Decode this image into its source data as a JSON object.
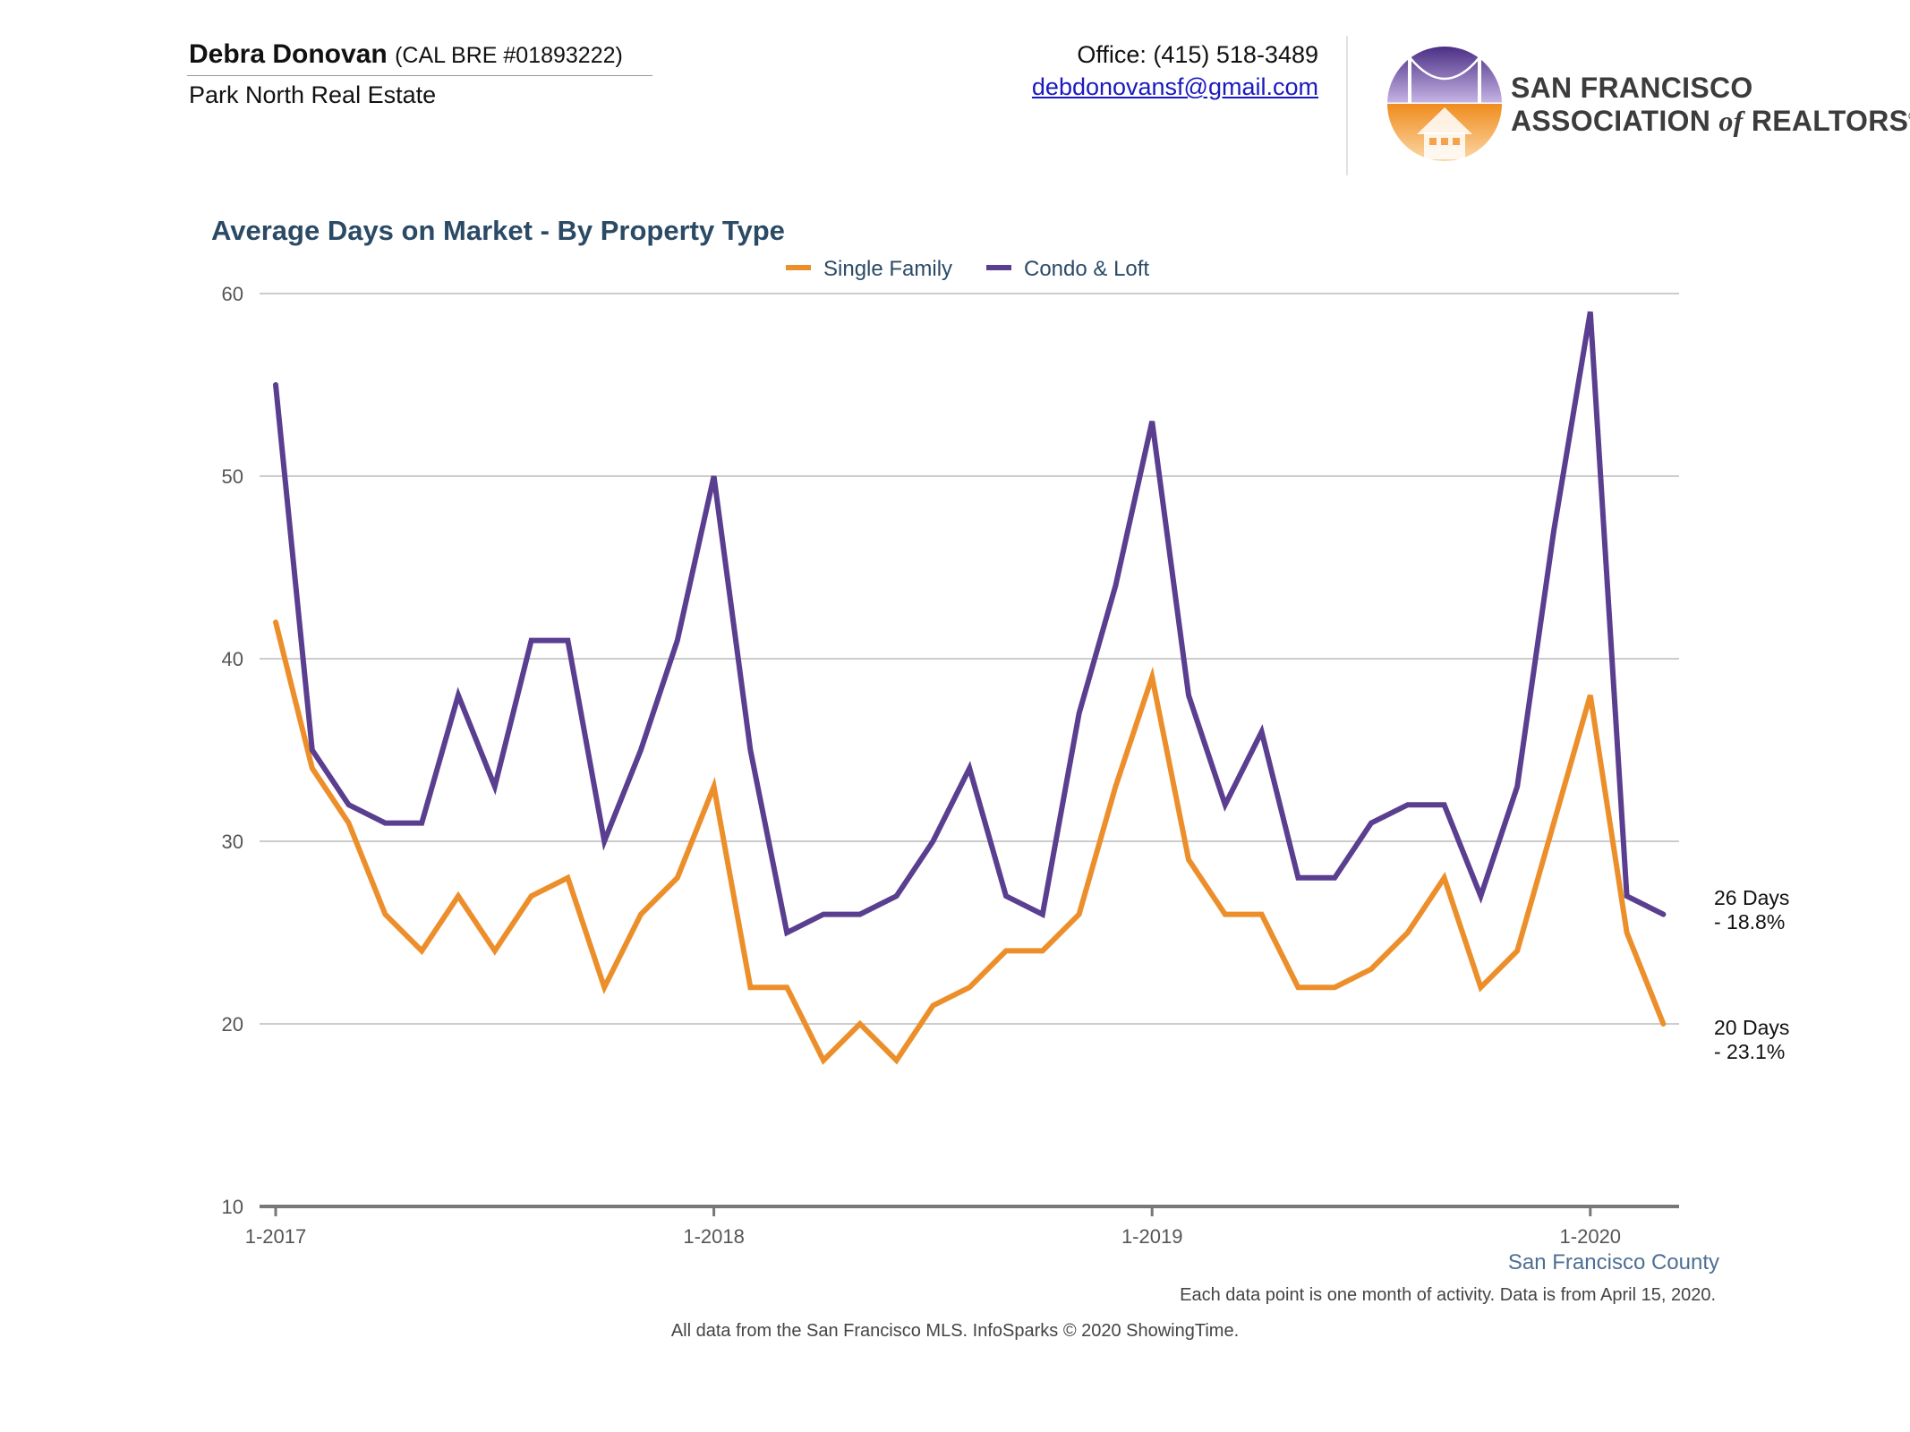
{
  "header": {
    "agent_name": "Debra Donovan",
    "agent_license": "(CAL BRE #01893222)",
    "brokerage": "Park North Real Estate",
    "office_phone": "Office: (415) 518-3489",
    "email": "debdonovansf@gmail.com",
    "association_line1": "SAN FRANCISCO",
    "association_line2_a": "ASSOCIATION",
    "association_line2_of": "of",
    "association_line2_b": "REALTORS",
    "association_mark": "®",
    "logo_icon": "golden-gate-bridge-house-logo-icon"
  },
  "chart_data": {
    "type": "line",
    "title": "Average Days on Market - By Property Type",
    "x": [
      "1-2017",
      "2-2017",
      "3-2017",
      "4-2017",
      "5-2017",
      "6-2017",
      "7-2017",
      "8-2017",
      "9-2017",
      "10-2017",
      "11-2017",
      "12-2017",
      "1-2018",
      "2-2018",
      "3-2018",
      "4-2018",
      "5-2018",
      "6-2018",
      "7-2018",
      "8-2018",
      "9-2018",
      "10-2018",
      "11-2018",
      "12-2018",
      "1-2019",
      "2-2019",
      "3-2019",
      "4-2019",
      "5-2019",
      "6-2019",
      "7-2019",
      "8-2019",
      "9-2019",
      "10-2019",
      "11-2019",
      "12-2019",
      "1-2020",
      "2-2020",
      "3-2020"
    ],
    "x_tick_labels": [
      "1-2017",
      "1-2018",
      "1-2019",
      "1-2020"
    ],
    "ylim": [
      10,
      60
    ],
    "y_ticks": [
      10,
      20,
      30,
      40,
      50,
      60
    ],
    "grid": true,
    "legend_position": "top-center",
    "series": [
      {
        "name": "Single Family",
        "color": "#ec8f2b",
        "values": [
          42,
          34,
          31,
          26,
          24,
          27,
          24,
          27,
          28,
          22,
          26,
          28,
          33,
          22,
          22,
          18,
          20,
          18,
          21,
          22,
          24,
          24,
          26,
          33,
          39,
          29,
          26,
          26,
          22,
          22,
          23,
          25,
          28,
          22,
          24,
          31,
          38,
          25,
          20
        ],
        "end_label_line1": "20 Days",
        "end_label_line2": "- 23.1%"
      },
      {
        "name": "Condo & Loft",
        "color": "#5a3e8f",
        "values": [
          55,
          35,
          32,
          31,
          31,
          38,
          33,
          41,
          41,
          30,
          35,
          41,
          50,
          35,
          25,
          26,
          26,
          27,
          30,
          34,
          27,
          26,
          37,
          44,
          53,
          38,
          32,
          36,
          28,
          28,
          31,
          32,
          32,
          27,
          33,
          47,
          59,
          27,
          26
        ],
        "end_label_line1": "26 Days",
        "end_label_line2": "- 18.8%"
      }
    ],
    "region_label": "San Francisco County",
    "footnote": "Each data point is one month of activity. Data is from April 15, 2020.",
    "source": "All data from the San Francisco MLS. InfoSparks © 2020 ShowingTime."
  }
}
